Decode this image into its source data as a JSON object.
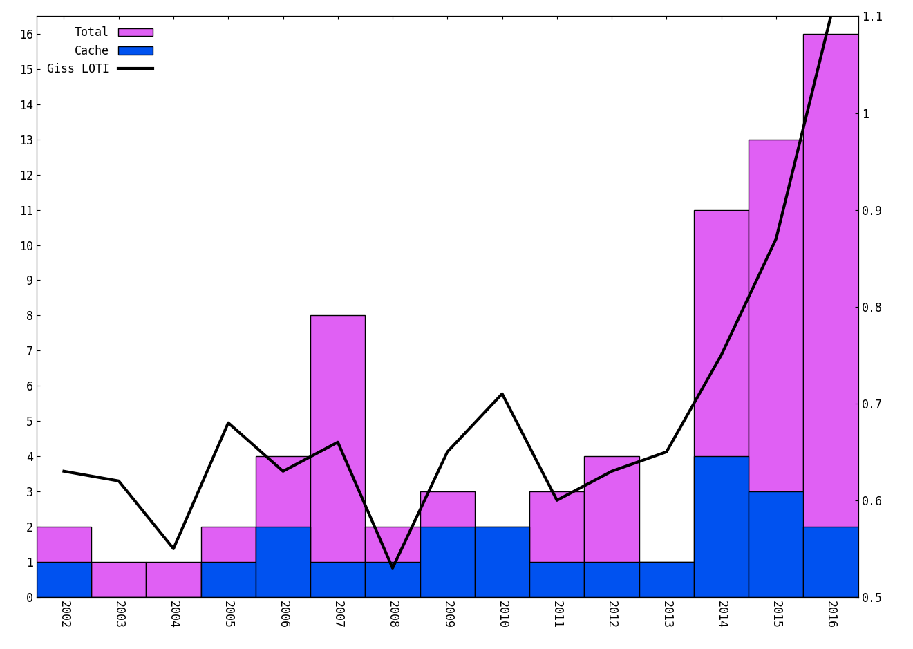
{
  "chart_data": {
    "type": "bar",
    "categories": [
      "2002",
      "2003",
      "2004",
      "2005",
      "2006",
      "2007",
      "2008",
      "2009",
      "2010",
      "2011",
      "2012",
      "2013",
      "2014",
      "2015",
      "2016"
    ],
    "series": [
      {
        "name": "Total",
        "type": "bar",
        "color": "#e060f4",
        "values": [
          2,
          1,
          1,
          2,
          4,
          8,
          2,
          3,
          2,
          3,
          4,
          1,
          11,
          13,
          16
        ]
      },
      {
        "name": "Cache",
        "type": "bar",
        "color": "#0052f0",
        "values": [
          1,
          0,
          0,
          1,
          2,
          1,
          1,
          2,
          2,
          1,
          1,
          1,
          4,
          3,
          2
        ]
      },
      {
        "name": "Giss LOTI",
        "type": "line",
        "color": "#000000",
        "axis": "y2",
        "line_style": "solid",
        "values": [
          0.63,
          0.62,
          0.55,
          0.68,
          0.63,
          0.66,
          0.53,
          0.65,
          0.71,
          0.6,
          0.63,
          0.65,
          0.75,
          0.87,
          1.1
        ]
      }
    ],
    "ylim": [
      0,
      16.5
    ],
    "yticks": [
      0,
      1,
      2,
      3,
      4,
      5,
      6,
      7,
      8,
      9,
      10,
      11,
      12,
      13,
      14,
      15,
      16
    ],
    "y2lim": [
      0.5,
      1.1
    ],
    "y2ticks": [
      0.5,
      0.6,
      0.7,
      0.8,
      0.9,
      1,
      1.1
    ],
    "legend": "upper left",
    "grid": false
  }
}
